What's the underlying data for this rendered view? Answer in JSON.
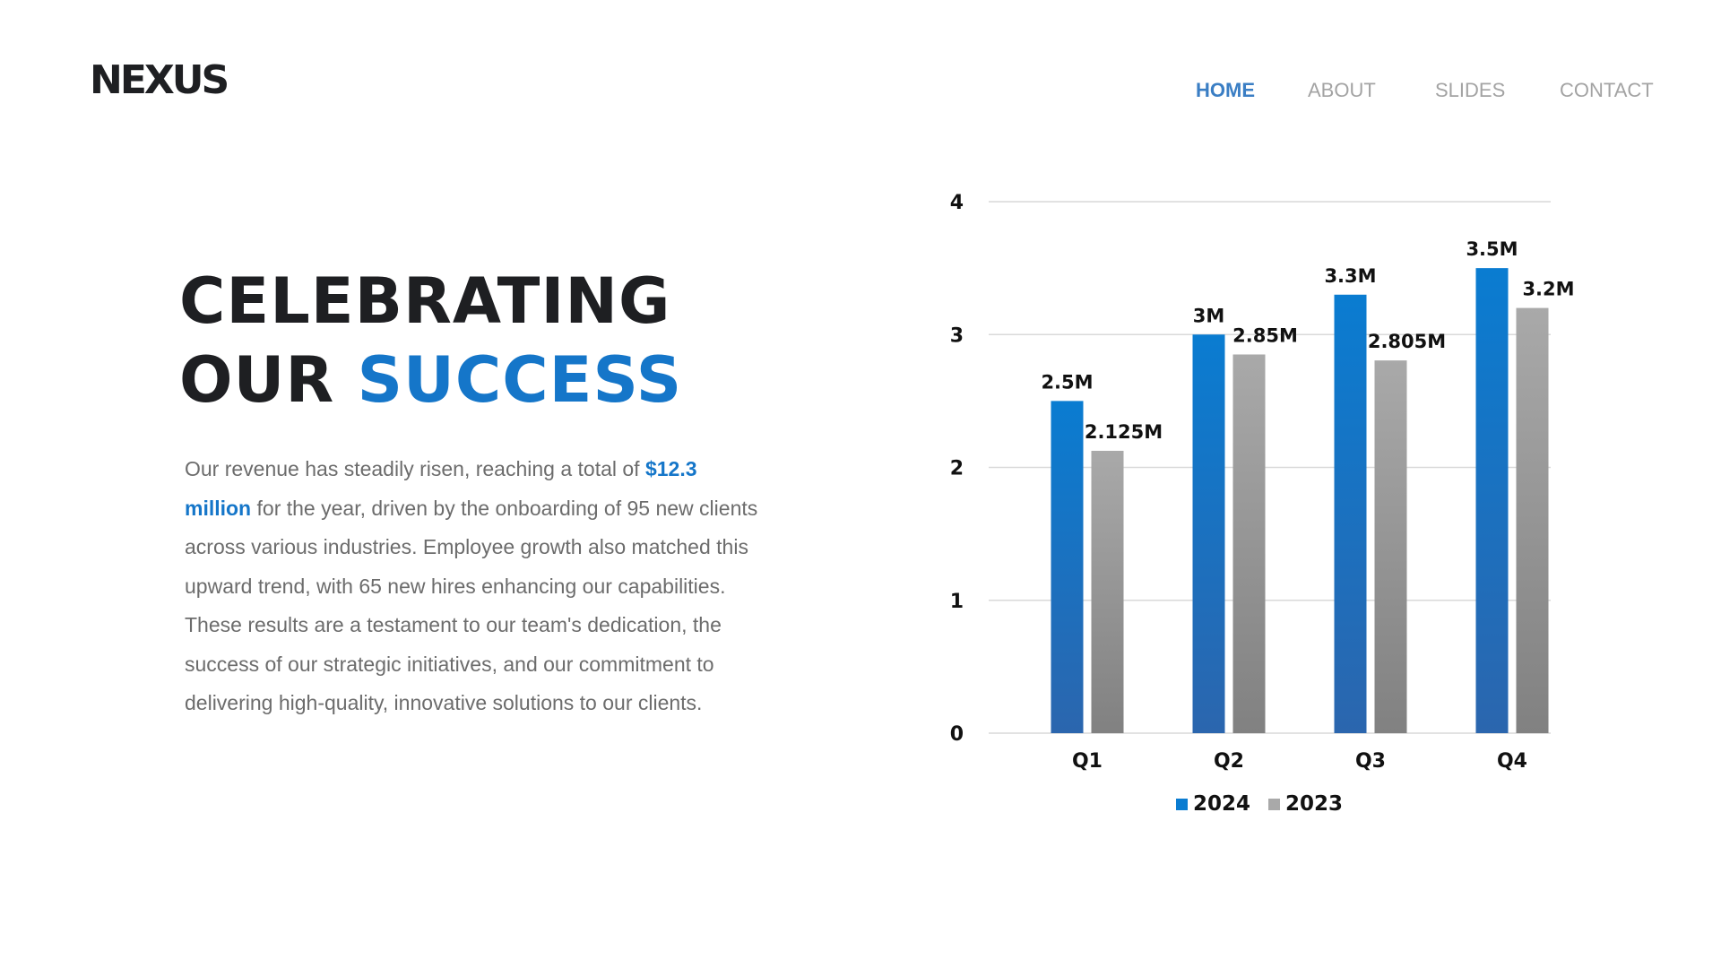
{
  "brand": {
    "logo": "NEXUS"
  },
  "nav": {
    "items": [
      {
        "label": "HOME",
        "active": true
      },
      {
        "label": "ABOUT",
        "active": false
      },
      {
        "label": "SLIDES",
        "active": false
      },
      {
        "label": "CONTACT",
        "active": false
      }
    ]
  },
  "hero": {
    "line1": "CELEBRATING",
    "line2_plain": "OUR ",
    "line2_accent": "SUCCESS"
  },
  "summary": {
    "part1": "Our revenue has steadily risen, reaching a total of ",
    "highlight": "$12.3 million",
    "part2": " for the year, driven by the onboarding of 95 new clients across various industries. Employee growth also matched this upward trend, with 65 new hires enhancing our capabilities. These results are a testament to our team's dedication, the success of our strategic initiatives, and our commitment to delivering high-quality, innovative solutions to our clients."
  },
  "colors": {
    "accent": "#1576c9",
    "series_2024_top": "#0a7cd1",
    "series_2024_bottom": "#2b66ae",
    "series_2023_top": "#a9a9a9",
    "series_2023_bottom": "#818181",
    "grid": "#d9d9d9"
  },
  "chart_data": {
    "type": "bar",
    "title": "",
    "xlabel": "",
    "ylabel": "",
    "categories": [
      "Q1",
      "Q2",
      "Q3",
      "Q4"
    ],
    "series": [
      {
        "name": "2024",
        "values": [
          2.5,
          3.0,
          3.3,
          3.5
        ],
        "labels": [
          "2.5M",
          "3M",
          "3.3M",
          "3.5M"
        ]
      },
      {
        "name": "2023",
        "values": [
          2.125,
          2.85,
          2.805,
          3.2
        ],
        "labels": [
          "2.125M",
          "2.85M",
          "2.805M",
          "3.2M"
        ]
      }
    ],
    "ylim": [
      0,
      4
    ],
    "yticks": [
      "0",
      "1",
      "2",
      "3",
      "4"
    ],
    "grid": true,
    "legend": "bottom-center"
  }
}
